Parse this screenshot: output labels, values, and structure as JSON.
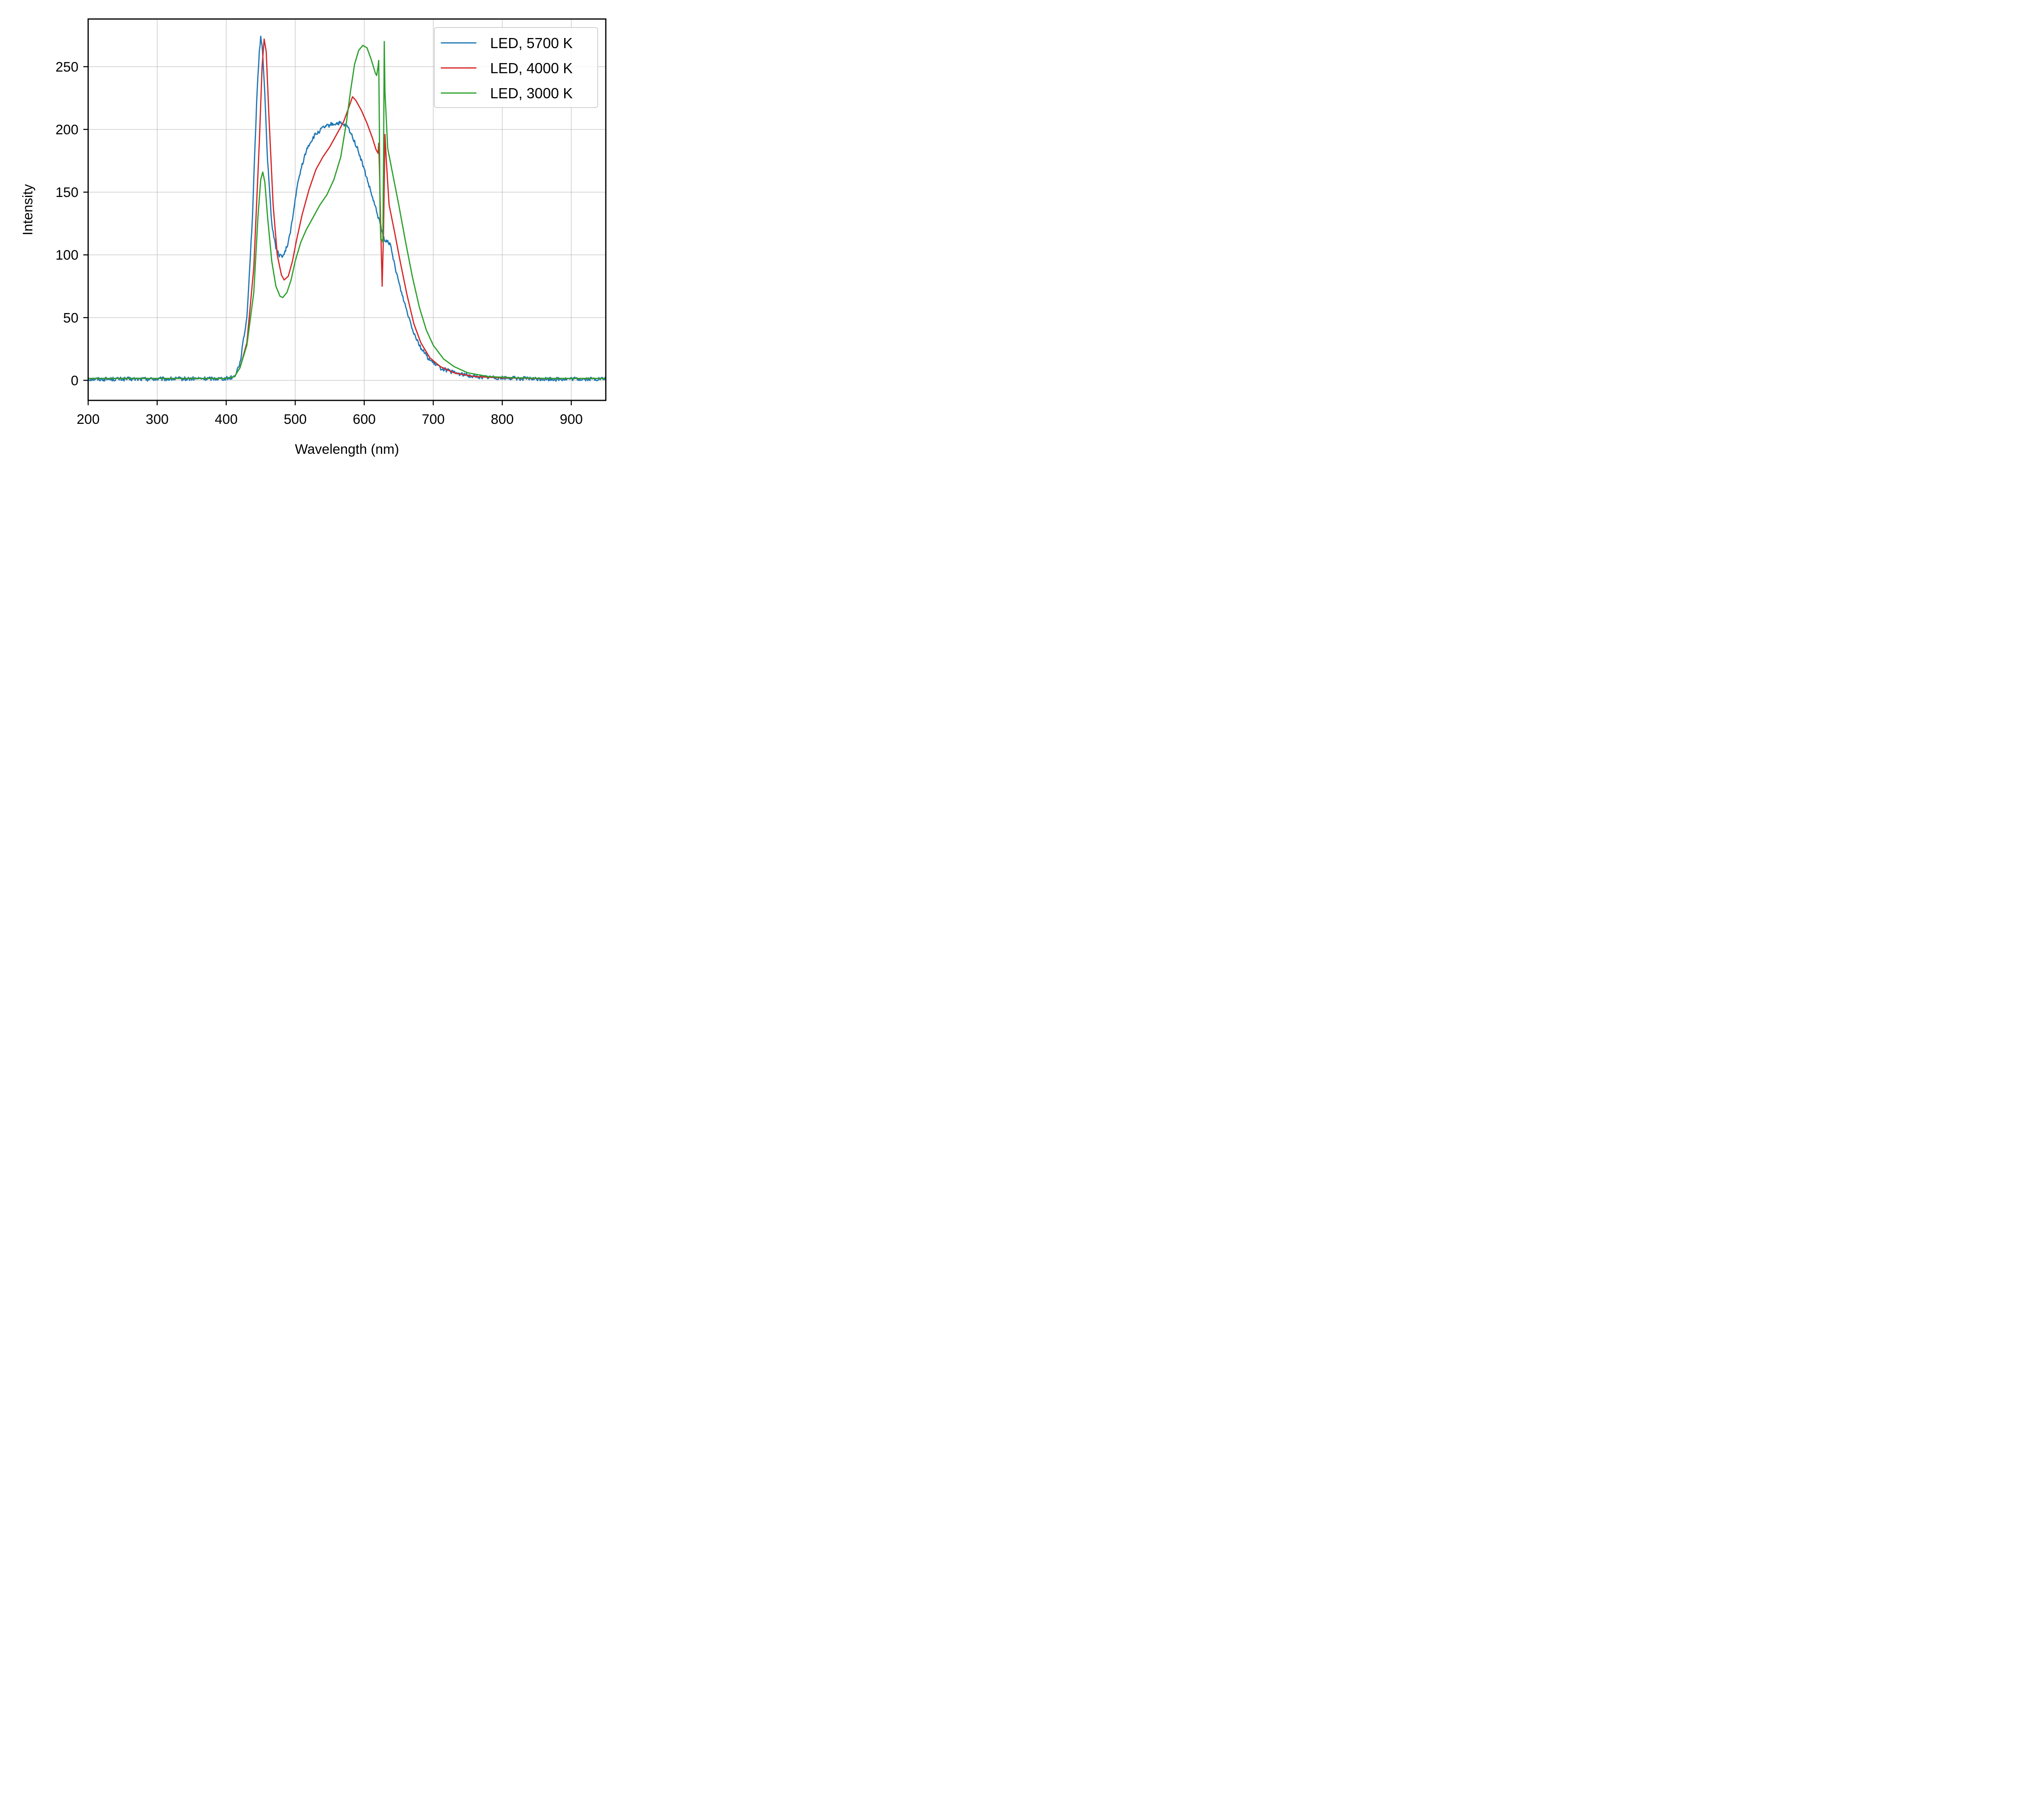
{
  "chart_data": {
    "type": "line",
    "title": "",
    "xlabel": "Wavelength (nm)",
    "ylabel": "Intensity",
    "xlim": [
      200,
      950
    ],
    "ylim": [
      -16,
      288
    ],
    "xticks": [
      200,
      300,
      400,
      500,
      600,
      700,
      800,
      900
    ],
    "yticks": [
      0,
      50,
      100,
      150,
      200,
      250
    ],
    "xtick_labels": [
      "200",
      "300",
      "400",
      "500",
      "600",
      "700",
      "800",
      "900"
    ],
    "ytick_labels": [
      "0",
      "50",
      "100",
      "150",
      "200",
      "250"
    ],
    "grid": true,
    "legend_position": "top-right",
    "series": [
      {
        "name": "LED, 5700 K",
        "color": "#1f77b4",
        "noise": 1.6,
        "points": [
          [
            200,
            1
          ],
          [
            300,
            1
          ],
          [
            400,
            1.5
          ],
          [
            412,
            3
          ],
          [
            420,
            14
          ],
          [
            430,
            50
          ],
          [
            438,
            130
          ],
          [
            444,
            220
          ],
          [
            448,
            262
          ],
          [
            450,
            273
          ],
          [
            452,
            268
          ],
          [
            455,
            240
          ],
          [
            460,
            175
          ],
          [
            466,
            125
          ],
          [
            472,
            105
          ],
          [
            478,
            99
          ],
          [
            484,
            100
          ],
          [
            490,
            110
          ],
          [
            496,
            128
          ],
          [
            502,
            152
          ],
          [
            510,
            172
          ],
          [
            518,
            186
          ],
          [
            528,
            195
          ],
          [
            540,
            201
          ],
          [
            552,
            204
          ],
          [
            564,
            205
          ],
          [
            576,
            202
          ],
          [
            584,
            193
          ],
          [
            592,
            182
          ],
          [
            600,
            168
          ],
          [
            608,
            153
          ],
          [
            616,
            138
          ],
          [
            622,
            127
          ],
          [
            626,
            118
          ],
          [
            630,
            110
          ],
          [
            634,
            112
          ],
          [
            638,
            107
          ],
          [
            644,
            92
          ],
          [
            652,
            74
          ],
          [
            662,
            55
          ],
          [
            672,
            38
          ],
          [
            682,
            26
          ],
          [
            695,
            16
          ],
          [
            710,
            10
          ],
          [
            730,
            6
          ],
          [
            760,
            3
          ],
          [
            800,
            2
          ],
          [
            850,
            1
          ],
          [
            950,
            1
          ]
        ]
      },
      {
        "name": "LED, 4000 K",
        "color": "#d62728",
        "points": [
          [
            200,
            1.5
          ],
          [
            300,
            1.5
          ],
          [
            400,
            1.5
          ],
          [
            412,
            3
          ],
          [
            420,
            10
          ],
          [
            430,
            30
          ],
          [
            440,
            90
          ],
          [
            448,
            190
          ],
          [
            452,
            250
          ],
          [
            455,
            272
          ],
          [
            458,
            262
          ],
          [
            462,
            210
          ],
          [
            468,
            140
          ],
          [
            474,
            100
          ],
          [
            480,
            84
          ],
          [
            484,
            80
          ],
          [
            490,
            83
          ],
          [
            496,
            95
          ],
          [
            502,
            112
          ],
          [
            510,
            132
          ],
          [
            520,
            152
          ],
          [
            530,
            168
          ],
          [
            540,
            178
          ],
          [
            550,
            186
          ],
          [
            560,
            196
          ],
          [
            570,
            206
          ],
          [
            578,
            218
          ],
          [
            583,
            226
          ],
          [
            588,
            223
          ],
          [
            596,
            215
          ],
          [
            604,
            205
          ],
          [
            612,
            193
          ],
          [
            617,
            184
          ],
          [
            620,
            181
          ],
          [
            621,
            189
          ],
          [
            622,
            170
          ],
          [
            624,
            120
          ],
          [
            626,
            75
          ],
          [
            628,
            120
          ],
          [
            630,
            196
          ],
          [
            632,
            175
          ],
          [
            636,
            140
          ],
          [
            644,
            118
          ],
          [
            652,
            95
          ],
          [
            662,
            68
          ],
          [
            672,
            45
          ],
          [
            682,
            30
          ],
          [
            695,
            18
          ],
          [
            710,
            11
          ],
          [
            730,
            6
          ],
          [
            760,
            3
          ],
          [
            800,
            2
          ],
          [
            850,
            1.5
          ],
          [
            950,
            1.5
          ]
        ]
      },
      {
        "name": "LED, 3000 K",
        "color": "#2ca02c",
        "points": [
          [
            200,
            1.5
          ],
          [
            300,
            1.5
          ],
          [
            400,
            1.5
          ],
          [
            412,
            3
          ],
          [
            420,
            10
          ],
          [
            430,
            28
          ],
          [
            440,
            70
          ],
          [
            446,
            130
          ],
          [
            450,
            160
          ],
          [
            453,
            166
          ],
          [
            456,
            158
          ],
          [
            460,
            130
          ],
          [
            466,
            95
          ],
          [
            472,
            75
          ],
          [
            478,
            67
          ],
          [
            482,
            66
          ],
          [
            488,
            70
          ],
          [
            494,
            80
          ],
          [
            500,
            95
          ],
          [
            508,
            110
          ],
          [
            516,
            120
          ],
          [
            526,
            130
          ],
          [
            536,
            140
          ],
          [
            546,
            148
          ],
          [
            556,
            160
          ],
          [
            566,
            178
          ],
          [
            574,
            205
          ],
          [
            580,
            230
          ],
          [
            586,
            252
          ],
          [
            592,
            263
          ],
          [
            598,
            267
          ],
          [
            604,
            265
          ],
          [
            610,
            256
          ],
          [
            616,
            245
          ],
          [
            618,
            243
          ],
          [
            620,
            250
          ],
          [
            621,
            255
          ],
          [
            622,
            200
          ],
          [
            623,
            130
          ],
          [
            624,
            112
          ],
          [
            626,
            112
          ],
          [
            627,
            110
          ],
          [
            628,
            180
          ],
          [
            629,
            270
          ],
          [
            630,
            230
          ],
          [
            634,
            185
          ],
          [
            640,
            168
          ],
          [
            650,
            140
          ],
          [
            660,
            110
          ],
          [
            670,
            82
          ],
          [
            680,
            58
          ],
          [
            690,
            40
          ],
          [
            700,
            28
          ],
          [
            715,
            17
          ],
          [
            730,
            11
          ],
          [
            750,
            6
          ],
          [
            780,
            3
          ],
          [
            820,
            2
          ],
          [
            870,
            1.5
          ],
          [
            950,
            1.5
          ]
        ]
      }
    ]
  }
}
